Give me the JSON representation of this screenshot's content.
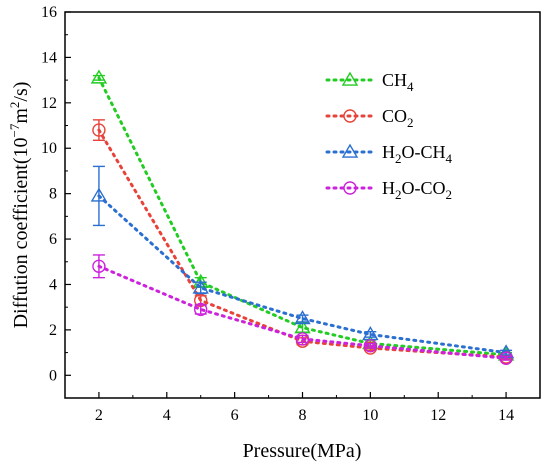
{
  "chart_data": {
    "type": "line",
    "xlabel": "Pressure(MPa)",
    "ylabel": {
      "prefix": "Diffution coefficient(10",
      "exp1": "−7",
      "mid": "m",
      "exp2": "2",
      "suffix": "/s)"
    },
    "xlim": [
      1,
      15
    ],
    "ylim": [
      -1,
      16
    ],
    "x_ticks": [
      2,
      4,
      6,
      8,
      10,
      12,
      14
    ],
    "y_ticks": [
      0,
      2,
      4,
      6,
      8,
      10,
      12,
      14,
      16
    ],
    "x_tick_labels": [
      "2",
      "4",
      "6",
      "8",
      "10",
      "12",
      "14"
    ],
    "y_tick_labels": [
      "0",
      "2",
      "4",
      "6",
      "8",
      "10",
      "12",
      "14",
      "16"
    ],
    "grid": false,
    "legend_position": "top-right",
    "series": [
      {
        "name": "CH4",
        "name_parts": [
          {
            "t": "CH"
          },
          {
            "t": "4",
            "sub": true
          }
        ],
        "marker": "triangle",
        "color": "#22cc22",
        "x": [
          2,
          5,
          8,
          10,
          14
        ],
        "y": [
          13.1,
          4.1,
          2.1,
          1.4,
          0.9
        ],
        "err": [
          0.1,
          0.2,
          0.2,
          0.15,
          0.1
        ]
      },
      {
        "name": "CO2",
        "name_parts": [
          {
            "t": "CO"
          },
          {
            "t": "2",
            "sub": true
          }
        ],
        "marker": "circle",
        "color": "#e8433a",
        "x": [
          2,
          5,
          8,
          10,
          14
        ],
        "y": [
          10.8,
          3.3,
          1.5,
          1.2,
          0.8
        ],
        "err": [
          0.45,
          0.2,
          0.15,
          0.1,
          0.08
        ]
      },
      {
        "name": "H2O-CH4",
        "name_parts": [
          {
            "t": "H"
          },
          {
            "t": "2",
            "sub": true
          },
          {
            "t": "O-CH"
          },
          {
            "t": "4",
            "sub": true
          }
        ],
        "marker": "triangle",
        "color": "#2b6fd1",
        "x": [
          2,
          5,
          8,
          10,
          14
        ],
        "y": [
          7.9,
          3.85,
          2.5,
          1.8,
          1.0
        ],
        "err": [
          1.3,
          0.25,
          0.15,
          0.12,
          0.1
        ]
      },
      {
        "name": "H2O-CO2",
        "name_parts": [
          {
            "t": "H"
          },
          {
            "t": "2",
            "sub": true
          },
          {
            "t": "O-CO"
          },
          {
            "t": "2",
            "sub": true
          }
        ],
        "marker": "circle",
        "color": "#cc22dd",
        "x": [
          2,
          5,
          8,
          10,
          14
        ],
        "y": [
          4.8,
          2.9,
          1.6,
          1.3,
          0.75
        ],
        "err": [
          0.5,
          0.2,
          0.15,
          0.1,
          0.08
        ]
      }
    ]
  }
}
